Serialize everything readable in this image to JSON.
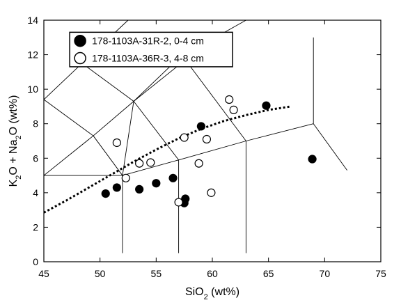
{
  "chart_data": {
    "type": "scatter",
    "xlabel": "SiO2 (wt%)",
    "ylabel": "K2O + Na2O (wt%)",
    "xlim": [
      45,
      75
    ],
    "ylim": [
      0,
      14
    ],
    "x_ticks": [
      45,
      50,
      55,
      60,
      65,
      70,
      75
    ],
    "y_ticks": [
      0,
      2,
      4,
      6,
      8,
      10,
      12,
      14
    ],
    "grid": false,
    "legend_position": "top-left",
    "series": [
      {
        "name": "178-1103A-31R-2, 0-4 cm",
        "marker": "filled-circle",
        "color": "#000000",
        "points": [
          [
            50.5,
            3.95
          ],
          [
            51.5,
            4.3
          ],
          [
            53.5,
            4.2
          ],
          [
            55.0,
            4.55
          ],
          [
            56.5,
            4.85
          ],
          [
            57.5,
            3.4
          ],
          [
            57.6,
            3.65
          ],
          [
            59.0,
            7.85
          ],
          [
            64.8,
            9.05
          ],
          [
            68.9,
            5.95
          ]
        ]
      },
      {
        "name": "178-1103A-36R-3, 4-8 cm",
        "marker": "open-circle",
        "color": "#000000",
        "points": [
          [
            51.5,
            6.9
          ],
          [
            52.3,
            4.85
          ],
          [
            53.5,
            5.7
          ],
          [
            54.5,
            5.75
          ],
          [
            57.0,
            3.45
          ],
          [
            57.5,
            7.2
          ],
          [
            58.8,
            5.7
          ],
          [
            59.5,
            7.1
          ],
          [
            59.9,
            4.0
          ],
          [
            61.5,
            9.4
          ],
          [
            61.9,
            8.8
          ]
        ]
      }
    ],
    "dotted_curve": [
      [
        45,
        2.85
      ],
      [
        47,
        3.55
      ],
      [
        49,
        4.3
      ],
      [
        51,
        5.05
      ],
      [
        53,
        5.8
      ],
      [
        55,
        6.5
      ],
      [
        57,
        7.15
      ],
      [
        59,
        7.7
      ],
      [
        61,
        8.15
      ],
      [
        63,
        8.5
      ],
      [
        65,
        8.8
      ],
      [
        67,
        9.0
      ]
    ],
    "classification_lines": [
      [
        [
          45,
          9.4
        ],
        [
          48.4,
          11.5
        ],
        [
          52.5,
          14
        ]
      ],
      [
        [
          48.4,
          11.5
        ],
        [
          53,
          9.3
        ],
        [
          57,
          11.8
        ],
        [
          63,
          14
        ]
      ],
      [
        [
          45,
          9.4
        ],
        [
          49.4,
          7.3
        ]
      ],
      [
        [
          53,
          9.3
        ],
        [
          49.4,
          7.3
        ],
        [
          45,
          5
        ]
      ],
      [
        [
          53,
          9.3
        ],
        [
          57.6,
          11.7
        ]
      ],
      [
        [
          52,
          5
        ],
        [
          57,
          5.9
        ],
        [
          63,
          7
        ],
        [
          69,
          8
        ]
      ],
      [
        [
          49.4,
          7.3
        ],
        [
          52,
          5
        ],
        [
          53,
          9.3
        ]
      ],
      [
        [
          57.6,
          11.7
        ],
        [
          63,
          7
        ]
      ],
      [
        [
          45,
          5
        ],
        [
          52,
          5
        ],
        [
          52,
          0.5
        ]
      ],
      [
        [
          57,
          5.9
        ],
        [
          57,
          0.5
        ]
      ],
      [
        [
          63,
          7
        ],
        [
          63,
          0.5
        ]
      ],
      [
        [
          53,
          9.3
        ],
        [
          57,
          5.9
        ]
      ],
      [
        [
          69,
          8
        ],
        [
          69,
          13
        ]
      ],
      [
        [
          69,
          8
        ],
        [
          72,
          5.3
        ]
      ]
    ],
    "legend_box": {
      "x_range": [
        47.3,
        61.8
      ],
      "y_range": [
        11.3,
        13.3
      ]
    }
  }
}
